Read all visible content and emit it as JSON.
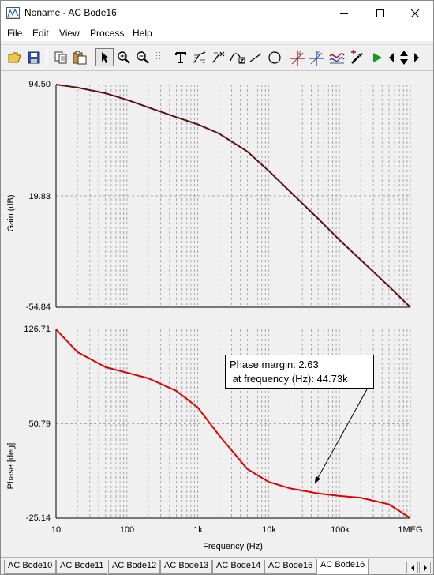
{
  "window": {
    "title": "Noname - AC Bode16",
    "controls": [
      "minimize",
      "maximize",
      "close"
    ]
  },
  "menu": [
    "File",
    "Edit",
    "View",
    "Process",
    "Help"
  ],
  "toolbar": {
    "icons": [
      "open-icon",
      "save-icon",
      "copy-icon",
      "paste-icon",
      "pointer-icon",
      "zoom-in-icon",
      "zoom-out-icon",
      "grid-icon",
      "text-icon",
      "curve-icon",
      "curve-fit-icon",
      "curve-z-icon",
      "line-icon",
      "ellipse-icon",
      "cursor-a-icon",
      "cursor-b-icon",
      "waveform-icon",
      "probe-icon",
      "run-icon",
      "step-left-icon",
      "step-updown-icon",
      "step-right-icon"
    ]
  },
  "chart_data": [
    {
      "type": "line",
      "ylabel": "Gain (dB)",
      "xscale": "log",
      "xlim": [
        10,
        1000000
      ],
      "ylim": [
        -54.84,
        94.5
      ],
      "yticks": [
        "94.50",
        "19.83",
        "-54.84"
      ],
      "grid": true,
      "series": [
        {
          "color": "#5a0f14",
          "x": [
            10,
            20,
            50,
            100,
            200,
            500,
            1000,
            2000,
            5000,
            10000,
            20000,
            50000,
            100000,
            200000,
            500000,
            1000000
          ],
          "y": [
            94.5,
            92.5,
            88.6,
            84.3,
            79.2,
            72.6,
            67.8,
            61.6,
            49.6,
            36.6,
            22.8,
            4.5,
            -9.7,
            -23.1,
            -40.9,
            -54.84
          ]
        }
      ]
    },
    {
      "type": "line",
      "ylabel": "Phase [deg]",
      "xlabel": "Frequency (Hz)",
      "xscale": "log",
      "xlim": [
        10,
        1000000
      ],
      "ylim": [
        -25.14,
        126.71
      ],
      "yticks": [
        "126.71",
        "50.79",
        "-25.14"
      ],
      "xticks": [
        "10",
        "100",
        "1k",
        "10k",
        "100k",
        "1MEG"
      ],
      "grid": true,
      "series": [
        {
          "color": "#e00000",
          "x": [
            10,
            20,
            50,
            100,
            200,
            500,
            1000,
            2000,
            5000,
            10000,
            20000,
            50000,
            100000,
            200000,
            500000,
            1000000
          ],
          "y": [
            126.71,
            108.5,
            96.3,
            91.9,
            87.3,
            77.2,
            63.8,
            41.5,
            14.3,
            4.0,
            -1.2,
            -5.3,
            -7.3,
            -8.8,
            -14.0,
            -25.14
          ]
        }
      ],
      "annotation": {
        "line1": "Phase margin: 2.63",
        "line2": " at frequency (Hz): 44.73k",
        "point_x": 44730,
        "point_y": 2.63
      }
    }
  ],
  "tabs": [
    "AC Bode10",
    "AC Bode11",
    "AC Bode12",
    "AC Bode13",
    "AC Bode14",
    "AC Bode15",
    "AC Bode16"
  ],
  "active_tab": "AC Bode16"
}
